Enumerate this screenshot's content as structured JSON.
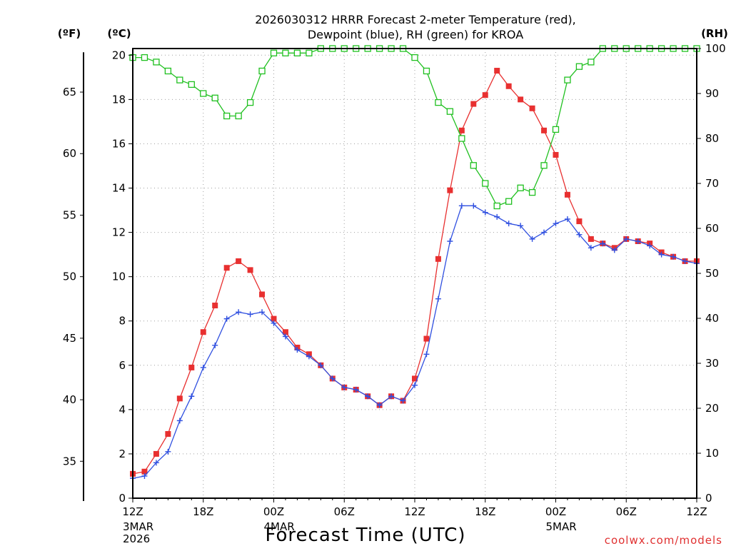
{
  "chart_data": {
    "type": "line",
    "title_line1": "2026030312 HRRR Forecast 2-meter Temperature (red),",
    "title_line2": "Dewpoint (blue), RH (green) for KROA",
    "xlabel": "Forecast Time (UTC)",
    "credit": "coolwx.com/models",
    "left_outer_axis": {
      "label": "(ºF)",
      "ticks": [
        "35",
        "40",
        "45",
        "50",
        "55",
        "60",
        "65"
      ],
      "tick_values": [
        35,
        40,
        45,
        50,
        55,
        60,
        65
      ],
      "ylim": [
        32,
        68
      ]
    },
    "left_axis": {
      "label": "(ºC)",
      "ticks": [
        "0",
        "2",
        "4",
        "6",
        "8",
        "10",
        "12",
        "14",
        "16",
        "18",
        "20"
      ],
      "tick_values": [
        0,
        2,
        4,
        6,
        8,
        10,
        12,
        14,
        16,
        18,
        20
      ],
      "ylim": [
        0,
        20.3
      ]
    },
    "right_axis": {
      "label": "(RH)",
      "ticks": [
        "0",
        "10",
        "20",
        "30",
        "40",
        "50",
        "60",
        "70",
        "80",
        "90",
        "100"
      ],
      "tick_values": [
        0,
        10,
        20,
        30,
        40,
        50,
        60,
        70,
        80,
        90,
        100
      ],
      "ylim": [
        0,
        100
      ]
    },
    "x_axis": {
      "range_hours": [
        0,
        48
      ],
      "tick_hours": [
        0,
        6,
        12,
        18,
        24,
        30,
        36,
        42,
        48
      ],
      "tick_labels": [
        "12Z",
        "18Z",
        "00Z",
        "06Z",
        "12Z",
        "18Z",
        "00Z",
        "06Z",
        "12Z"
      ],
      "date_labels": [
        {
          "hour": 0,
          "lines": [
            "3MAR",
            "2026"
          ]
        },
        {
          "hour": 12,
          "lines": [
            "4MAR"
          ]
        },
        {
          "hour": 36,
          "lines": [
            "5MAR"
          ]
        }
      ]
    },
    "grid": true,
    "series": [
      {
        "name": "Temperature",
        "axis": "left",
        "color": "#e83030",
        "marker": "filled-square",
        "x": [
          0,
          1,
          2,
          3,
          4,
          5,
          6,
          7,
          8,
          9,
          10,
          11,
          12,
          13,
          14,
          15,
          16,
          17,
          18,
          19,
          20,
          21,
          22,
          23,
          24,
          25,
          26,
          27,
          28,
          29,
          30,
          31,
          32,
          33,
          34,
          35,
          36,
          37,
          38,
          39,
          40,
          41,
          42,
          43,
          44,
          45,
          46,
          47,
          48
        ],
        "values": [
          1.1,
          1.2,
          2.0,
          2.9,
          4.5,
          5.9,
          7.5,
          8.7,
          10.4,
          10.7,
          10.3,
          9.2,
          8.1,
          7.5,
          6.8,
          6.5,
          6.0,
          5.4,
          5.0,
          4.9,
          4.6,
          4.2,
          4.6,
          4.4,
          5.4,
          7.2,
          10.8,
          13.9,
          16.6,
          17.8,
          18.2,
          19.3,
          18.6,
          18.0,
          17.6,
          16.6,
          15.5,
          13.7,
          12.5,
          11.7,
          11.5,
          11.3,
          11.7,
          11.6,
          11.5,
          11.1,
          10.9,
          10.7,
          10.7
        ]
      },
      {
        "name": "Dewpoint",
        "axis": "left",
        "color": "#3050e0",
        "marker": "plus",
        "x": [
          0,
          1,
          2,
          3,
          4,
          5,
          6,
          7,
          8,
          9,
          10,
          11,
          12,
          13,
          14,
          15,
          16,
          17,
          18,
          19,
          20,
          21,
          22,
          23,
          24,
          25,
          26,
          27,
          28,
          29,
          30,
          31,
          32,
          33,
          34,
          35,
          36,
          37,
          38,
          39,
          40,
          41,
          42,
          43,
          44,
          45,
          46,
          47,
          48
        ],
        "values": [
          0.9,
          1.0,
          1.6,
          2.1,
          3.5,
          4.6,
          5.9,
          6.9,
          8.1,
          8.4,
          8.3,
          8.4,
          7.9,
          7.3,
          6.7,
          6.4,
          6.0,
          5.4,
          5.0,
          4.9,
          4.6,
          4.2,
          4.6,
          4.4,
          5.1,
          6.5,
          9.0,
          11.6,
          13.2,
          13.2,
          12.9,
          12.7,
          12.4,
          12.3,
          11.7,
          12.0,
          12.4,
          12.6,
          11.9,
          11.3,
          11.5,
          11.2,
          11.7,
          11.6,
          11.4,
          11.0,
          10.9,
          10.7,
          10.6
        ]
      },
      {
        "name": "RH",
        "axis": "right",
        "color": "#20c020",
        "marker": "open-square",
        "x": [
          0,
          1,
          2,
          3,
          4,
          5,
          6,
          7,
          8,
          9,
          10,
          11,
          12,
          13,
          14,
          15,
          16,
          17,
          18,
          19,
          20,
          21,
          22,
          23,
          24,
          25,
          26,
          27,
          28,
          29,
          30,
          31,
          32,
          33,
          34,
          35,
          36,
          37,
          38,
          39,
          40,
          41,
          42,
          43,
          44,
          45,
          46,
          47,
          48
        ],
        "values": [
          98,
          98,
          97,
          95,
          93,
          92,
          90,
          89,
          85,
          85,
          88,
          95,
          99,
          99,
          99,
          99,
          100,
          100,
          100,
          100,
          100,
          100,
          100,
          100,
          98,
          95,
          88,
          86,
          80,
          74,
          70,
          65,
          66,
          69,
          68,
          74,
          82,
          93,
          96,
          97,
          100,
          100,
          100,
          100,
          100,
          100,
          100,
          100,
          100
        ]
      }
    ]
  }
}
